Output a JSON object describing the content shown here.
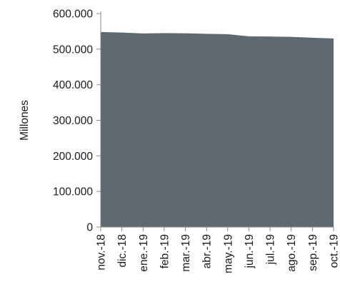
{
  "chart_data": {
    "type": "area",
    "title": "",
    "xlabel": "",
    "ylabel": "Millones",
    "categories": [
      "nov.-18",
      "dic.-18",
      "ene.-19",
      "feb.-19",
      "mar.-19",
      "abr.-19",
      "may.-19",
      "jun.-19",
      "jul.-19",
      "ago.-19",
      "sep.-19",
      "oct.-19"
    ],
    "values": [
      548000,
      546500,
      544000,
      545000,
      544500,
      543000,
      542000,
      536000,
      535500,
      534500,
      532000,
      530000
    ],
    "ylim": [
      0,
      600000
    ],
    "yticks": [
      0,
      100000,
      200000,
      300000,
      400000,
      500000,
      600000
    ],
    "ytick_labels": [
      "0",
      "100.000",
      "200.000",
      "300.000",
      "400.000",
      "500.000",
      "600.000"
    ],
    "grid": false,
    "legend": "none",
    "colors": {
      "fill": "#5e686f",
      "axis": "#888888"
    }
  }
}
